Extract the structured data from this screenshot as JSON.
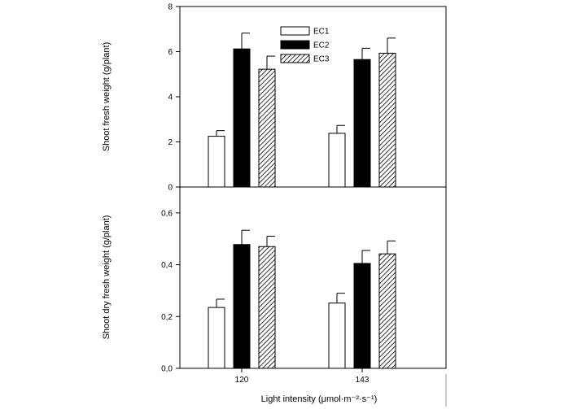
{
  "chart_data": {
    "type": "bar",
    "categories": [
      "120",
      "143"
    ],
    "series_names": [
      "EC1",
      "EC2",
      "EC3"
    ],
    "series_fills": [
      "white",
      "black",
      "hatched"
    ],
    "xlabel": "Light intensity (μmol·m⁻²·s⁻¹)",
    "legend_position": "top-center",
    "panels": [
      {
        "ylabel": "Shoot fresh weight (g/plant)",
        "ylim": [
          0,
          8
        ],
        "yticks": [
          0,
          2,
          4,
          6,
          8
        ],
        "ytick_labels": [
          "0",
          "2",
          "4",
          "6",
          "8"
        ],
        "series": [
          {
            "name": "EC1",
            "values": [
              2.25,
              2.38
            ],
            "errors": [
              0.25,
              0.35
            ]
          },
          {
            "name": "EC2",
            "values": [
              6.12,
              5.65
            ],
            "errors": [
              0.7,
              0.5
            ]
          },
          {
            "name": "EC3",
            "values": [
              5.22,
              5.93
            ],
            "errors": [
              0.58,
              0.67
            ]
          }
        ]
      },
      {
        "ylabel": "Shoot dry fresh weight (g/plant)",
        "ylim": [
          0,
          0.7
        ],
        "yticks": [
          0,
          0.2,
          0.4,
          0.6
        ],
        "ytick_labels": [
          "0,0",
          "0,2",
          "0,4",
          "0,6"
        ],
        "series": [
          {
            "name": "EC1",
            "values": [
              0.235,
              0.252
            ],
            "errors": [
              0.032,
              0.038
            ]
          },
          {
            "name": "EC2",
            "values": [
              0.478,
              0.405
            ],
            "errors": [
              0.055,
              0.05
            ]
          },
          {
            "name": "EC3",
            "values": [
              0.47,
              0.442
            ],
            "errors": [
              0.04,
              0.05
            ]
          }
        ]
      }
    ]
  }
}
